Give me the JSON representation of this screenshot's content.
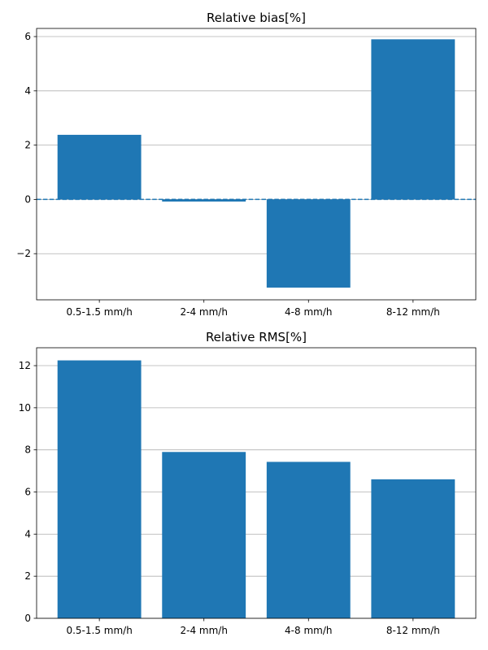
{
  "chart_data": [
    {
      "type": "bar",
      "title": "Relative bias[%]",
      "categories": [
        "0.5-1.5 mm/h",
        "2-4 mm/h",
        "4-8 mm/h",
        "8-12 mm/h"
      ],
      "values": [
        2.38,
        -0.08,
        -3.25,
        5.9
      ],
      "ylim": [
        -3.7,
        6.3
      ],
      "yticks": [
        -2,
        0,
        2,
        4,
        6
      ],
      "ytick_labels": [
        "−2",
        "0",
        "2",
        "4",
        "6"
      ],
      "grid": "y",
      "reference_line": {
        "y": 0,
        "style": "dashed"
      },
      "color": "#1f77b4"
    },
    {
      "type": "bar",
      "title": "Relative RMS[%]",
      "categories": [
        "0.5-1.5 mm/h",
        "2-4 mm/h",
        "4-8 mm/h",
        "8-12 mm/h"
      ],
      "values": [
        12.25,
        7.9,
        7.43,
        6.6
      ],
      "ylim": [
        0,
        12.85
      ],
      "yticks": [
        0,
        2,
        4,
        6,
        8,
        10,
        12
      ],
      "ytick_labels": [
        "0",
        "2",
        "4",
        "6",
        "8",
        "10",
        "12"
      ],
      "grid": "y",
      "color": "#1f77b4"
    }
  ]
}
